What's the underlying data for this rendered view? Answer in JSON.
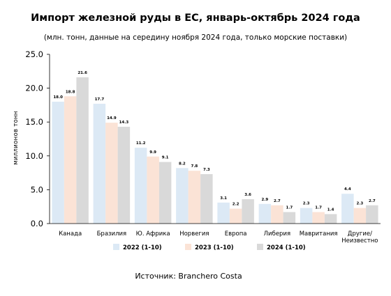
{
  "chart_data": {
    "type": "bar",
    "title": "Импорт железной руды в ЕС, январь-октябрь 2024 года",
    "subtitle": "(млн. тонн, данные на середину ноября 2024 года, только морские поставки)",
    "ylabel": "миллионов тонн",
    "xlabel": "",
    "ylim": [
      0,
      25
    ],
    "yticks": [
      "0.0",
      "5.0",
      "10.0",
      "15.0",
      "20.0",
      "25.0"
    ],
    "grid": false,
    "legend_position": "bottom",
    "categories": [
      "Канада",
      "Бразилия",
      "Ю. Африка",
      "Норвегия",
      "Европа",
      "Либерия",
      "Мавритания",
      "Другие/ Неизвестно"
    ],
    "category_lines": [
      [
        "Канада"
      ],
      [
        "Бразилия"
      ],
      [
        "Ю. Африка"
      ],
      [
        "Норвегия"
      ],
      [
        "Европа"
      ],
      [
        "Либерия"
      ],
      [
        "Мавритания"
      ],
      [
        "Другие/",
        "Неизвестно"
      ]
    ],
    "series": [
      {
        "name": "2022 (1-10)",
        "color": "#dce9f5",
        "values": [
          18.0,
          17.7,
          11.2,
          8.2,
          3.1,
          2.9,
          2.3,
          4.4
        ],
        "labels": [
          "18.0",
          "17.7",
          "11.2",
          "8.2",
          "3.1",
          "2.9",
          "2.3",
          "4.4"
        ]
      },
      {
        "name": "2023 (1-10)",
        "color": "#fbe3d6",
        "values": [
          18.8,
          14.9,
          9.9,
          7.8,
          2.2,
          2.7,
          1.7,
          2.3
        ],
        "labels": [
          "18.8",
          "14.9",
          "9.9",
          "7.8",
          "2.2",
          "2.7",
          "1.7",
          "2.3"
        ]
      },
      {
        "name": "2024 (1-10)",
        "color": "#d9d9d9",
        "values": [
          21.6,
          14.3,
          9.1,
          7.3,
          3.6,
          1.7,
          1.4,
          2.7
        ],
        "labels": [
          "21.6",
          "14.3",
          "9.1",
          "7.3",
          "3.6",
          "1.7",
          "1.4",
          "2.7"
        ]
      }
    ]
  },
  "source_text": "Источник: Branchero Costa"
}
